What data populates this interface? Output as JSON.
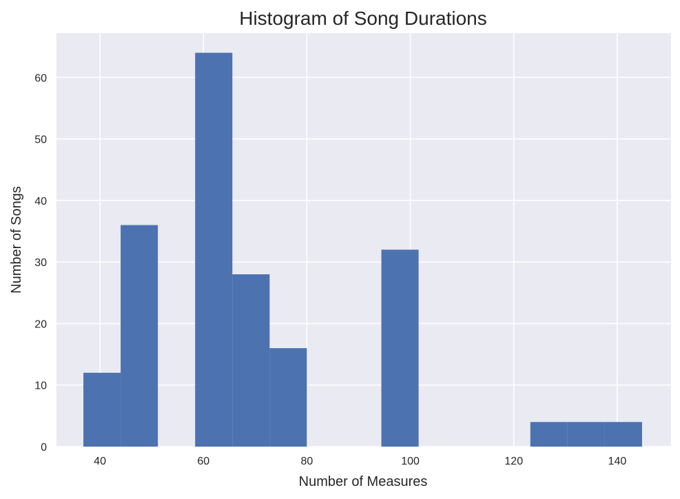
{
  "chart_data": {
    "type": "bar",
    "title": "Histogram of Song Durations",
    "xlabel": "Number of Measures",
    "ylabel": "Number of Songs",
    "xlim": [
      31.6,
      150.4
    ],
    "ylim": [
      0,
      67.2
    ],
    "xticks": [
      40,
      60,
      80,
      100,
      120,
      140
    ],
    "yticks": [
      0,
      10,
      20,
      30,
      40,
      50,
      60
    ],
    "grid": true,
    "bin_edges": [
      36.8,
      44.0,
      51.2,
      58.4,
      65.6,
      72.8,
      80.0,
      87.2,
      94.4,
      101.6,
      108.8,
      116.0,
      123.2,
      130.4,
      137.6,
      144.8
    ],
    "values": [
      12,
      36,
      0,
      64,
      28,
      16,
      0,
      0,
      32,
      0,
      0,
      0,
      4,
      4,
      4
    ],
    "colors": {
      "bar": "#4c72b0",
      "background": "#eaeaf2",
      "grid": "#ffffff",
      "text": "#262626"
    }
  }
}
